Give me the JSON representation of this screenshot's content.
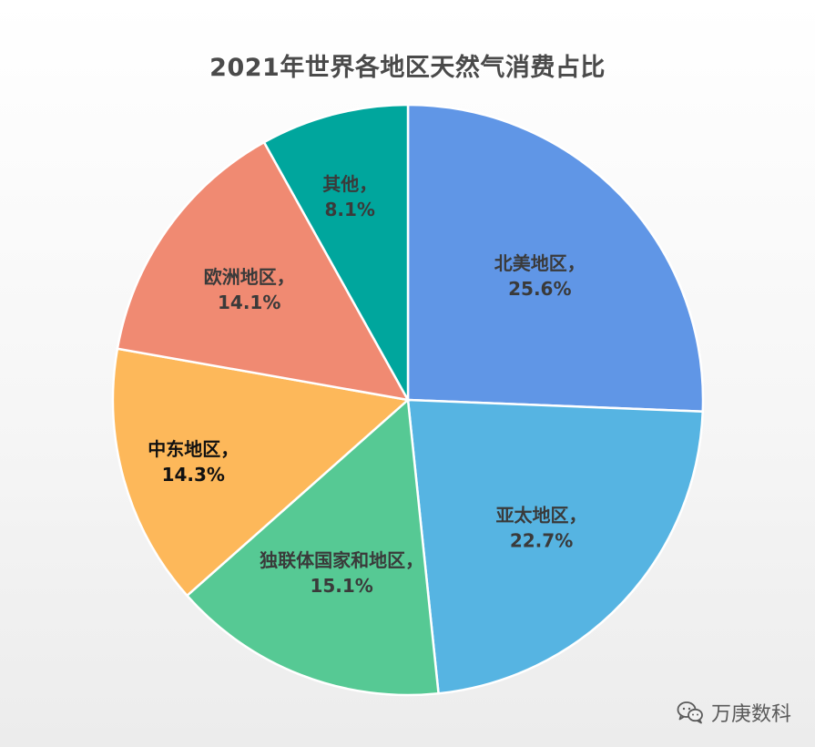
{
  "chart_data": {
    "type": "pie",
    "title": "2021年世界各地区天然气消费占比",
    "slices": [
      {
        "label": "北美地区",
        "value": 25.6,
        "display": "25.6%",
        "color": "#6096e6",
        "text_color": "#3a3a3a"
      },
      {
        "label": "亚太地区",
        "value": 22.7,
        "display": "22.7%",
        "color": "#56b4e2",
        "text_color": "#3a3a3a"
      },
      {
        "label": "独联体国家和地区",
        "value": 15.1,
        "display": "15.1%",
        "color": "#56c994",
        "text_color": "#3a3a3a"
      },
      {
        "label": "中东地区",
        "value": 14.3,
        "display": "14.3%",
        "color": "#fdb85a",
        "text_color": "#111111"
      },
      {
        "label": "欧洲地区",
        "value": 14.1,
        "display": "14.1%",
        "color": "#f08a72",
        "text_color": "#3a3a3a"
      },
      {
        "label": "其他",
        "value": 8.1,
        "display": "8.1%",
        "color": "#00a69d",
        "text_color": "#3a3a3a"
      }
    ],
    "start_angle_deg": 0,
    "direction": "clockwise",
    "legend": "none"
  },
  "watermark": {
    "text": "万庚数科",
    "icon": "wechat-icon"
  }
}
